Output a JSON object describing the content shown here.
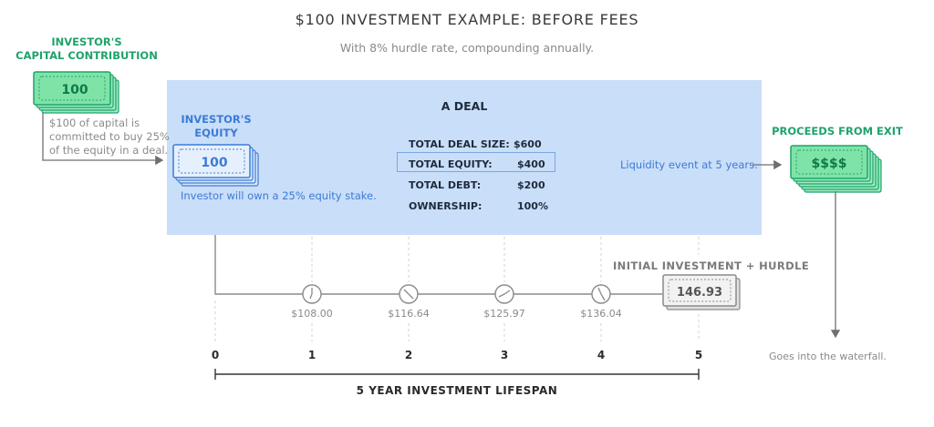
{
  "title": "$100 INVESTMENT EXAMPLE: BEFORE FEES",
  "subtitle": "With 8% hurdle rate, compounding annually.",
  "contribution": {
    "heading_line1": "INVESTOR'S",
    "heading_line2": "CAPITAL CONTRIBUTION",
    "bill_value": "100",
    "note_line1": "$100 of capital is",
    "note_line2": "committed to buy 25%",
    "note_line3": "of the equity in a deal."
  },
  "deal": {
    "title": "A DEAL",
    "equity_heading_line1": "INVESTOR'S",
    "equity_heading_line2": "EQUITY",
    "equity_bill_value": "100",
    "equity_note": "Investor will own a 25% equity stake.",
    "rows": [
      {
        "label": "TOTAL DEAL SIZE:",
        "value": "$600"
      },
      {
        "label": "TOTAL EQUITY:",
        "value": "$400"
      },
      {
        "label": "TOTAL DEBT:",
        "value": "$200"
      },
      {
        "label": "OWNERSHIP:",
        "value": "100%"
      }
    ],
    "liquidity_note": "Liquidity event at 5 years."
  },
  "exit": {
    "heading": "PROCEEDS FROM EXIT",
    "bill_value": "$$$$",
    "waterfall_note": "Goes into the waterfall."
  },
  "timeline": {
    "years": [
      "0",
      "1",
      "2",
      "3",
      "4",
      "5"
    ],
    "values": [
      "$108.00",
      "$116.64",
      "$125.97",
      "$136.04"
    ],
    "final_heading": "INITIAL INVESTMENT + HURDLE",
    "final_value": "146.93",
    "lifespan_label": "5 YEAR INVESTMENT LIFESPAN"
  },
  "colors": {
    "green": "#1fa36a",
    "bill_green_fill": "#7fe3a8",
    "blue": "#3d7bd6",
    "deal_bg": "#c9def8",
    "gray": "#8a8a8a"
  }
}
